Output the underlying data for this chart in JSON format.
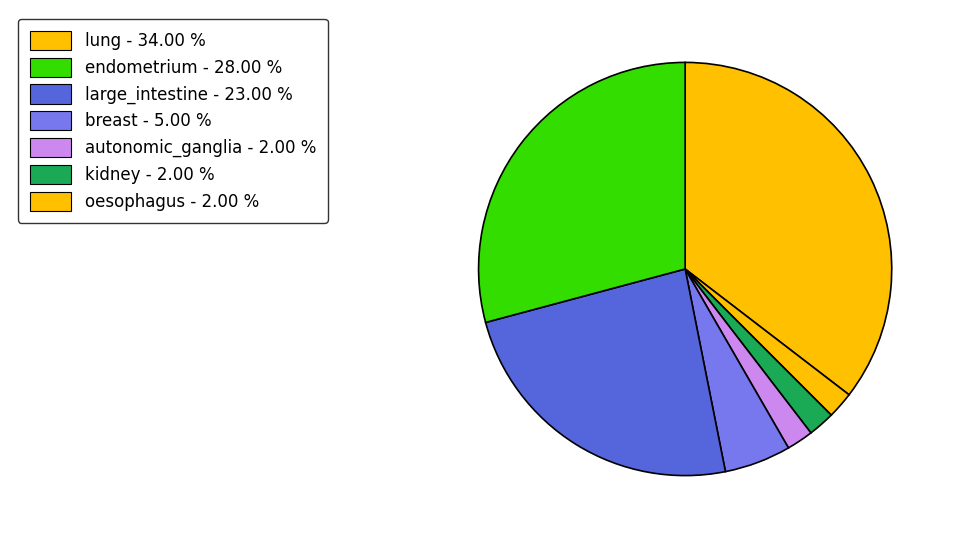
{
  "labels": [
    "lung",
    "oesophagus",
    "kidney",
    "autonomic_ganglia",
    "breast",
    "large_intestine",
    "endometrium"
  ],
  "values": [
    34.0,
    2.0,
    2.0,
    2.0,
    5.0,
    23.0,
    28.0
  ],
  "pie_colors": [
    "#FFC000",
    "#FFC000",
    "#1AAA55",
    "#CC88EE",
    "#7777EE",
    "#5566DD",
    "#33DD00"
  ],
  "legend_labels": [
    "lung - 34.00 %",
    "endometrium - 28.00 %",
    "large_intestine - 23.00 %",
    "breast - 5.00 %",
    "autonomic_ganglia - 2.00 %",
    "kidney - 2.00 %",
    "oesophagus - 2.00 %"
  ],
  "legend_colors": [
    "#FFC000",
    "#33DD00",
    "#5566DD",
    "#7777EE",
    "#CC88EE",
    "#1AAA55",
    "#FFC000"
  ],
  "startangle": 90,
  "figsize": [
    9.65,
    5.38
  ],
  "dpi": 100
}
